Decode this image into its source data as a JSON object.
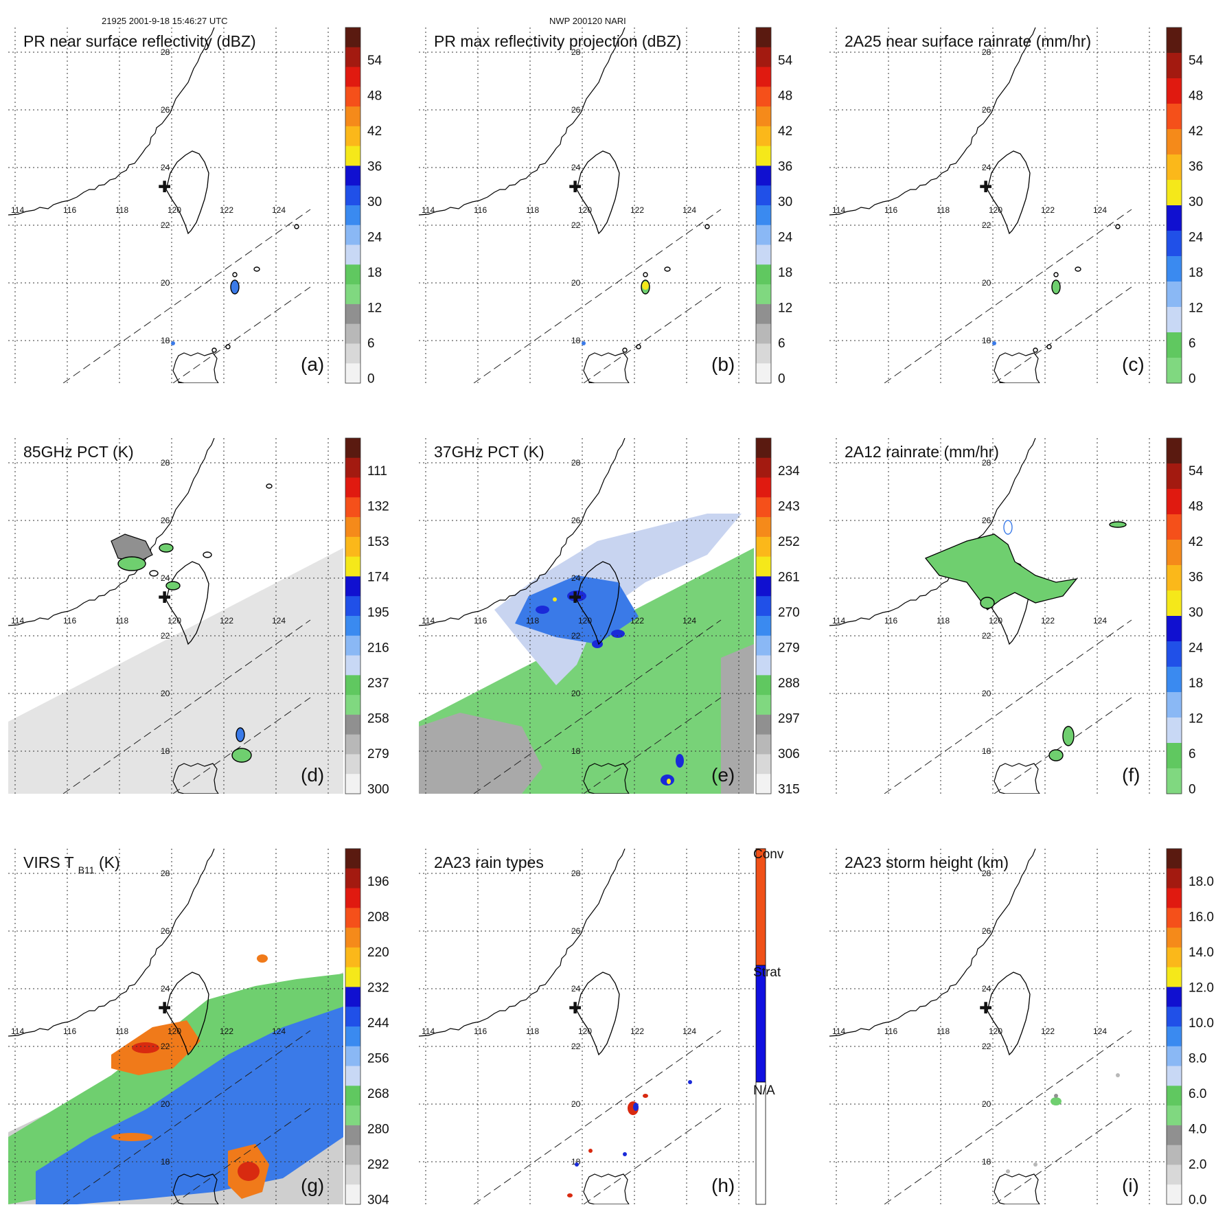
{
  "header": {
    "orbit_time": "21925 2001-9-18 15:46:27 UTC",
    "model": "NWP 200120 NARI"
  },
  "map": {
    "lon_labels": [
      "114",
      "116",
      "118",
      "120",
      "122",
      "124"
    ],
    "lat_labels": [
      "28",
      "26",
      "24",
      "22",
      "20",
      "18"
    ],
    "marker": "✚"
  },
  "panels": [
    {
      "id": "a",
      "title": "PR near surface reflectivity (dBZ)",
      "label": "(a)",
      "bg": "none",
      "cb_ticks": [
        "54",
        "48",
        "42",
        "36",
        "30",
        "24",
        "18",
        "12",
        "6",
        "0"
      ],
      "cb_colors": [
        "#5a1a10",
        "#a31a10",
        "#e01a10",
        "#f5501a",
        "#f58a1a",
        "#fbb81a",
        "#f5e81a",
        "#1010d0",
        "#2050e8",
        "#3a8af0",
        "#8ab8f5",
        "#c8d8f5",
        "#60c860",
        "#80d880",
        "#909090",
        "#b8b8b8",
        "#d8d8d8",
        "#f2f2f2"
      ]
    },
    {
      "id": "b",
      "title": "PR max reflectivity projection (dBZ)",
      "label": "(b)",
      "bg": "none",
      "cb_ticks": [
        "54",
        "48",
        "42",
        "36",
        "30",
        "24",
        "18",
        "12",
        "6",
        "0"
      ],
      "cb_colors": [
        "#5a1a10",
        "#a31a10",
        "#e01a10",
        "#f5501a",
        "#f58a1a",
        "#fbb81a",
        "#f5e81a",
        "#1010d0",
        "#2050e8",
        "#3a8af0",
        "#8ab8f5",
        "#c8d8f5",
        "#60c860",
        "#80d880",
        "#909090",
        "#b8b8b8",
        "#d8d8d8",
        "#f2f2f2"
      ]
    },
    {
      "id": "c",
      "title": "2A25 near surface rainrate (mm/hr)",
      "label": "(c)",
      "bg": "none",
      "cb_ticks": [
        "54",
        "48",
        "42",
        "36",
        "30",
        "24",
        "18",
        "12",
        "6",
        "0"
      ],
      "cb_colors": [
        "#5a1a10",
        "#a31a10",
        "#e01a10",
        "#f5501a",
        "#f58a1a",
        "#fbb81a",
        "#f5e81a",
        "#1010d0",
        "#2050e8",
        "#3a8af0",
        "#8ab8f5",
        "#c8d8f5",
        "#60c860",
        "#80d880"
      ]
    },
    {
      "id": "d",
      "title": "85GHz PCT (K)",
      "label": "(d)",
      "bg": "gray",
      "cb_ticks": [
        "111",
        "132",
        "153",
        "174",
        "195",
        "216",
        "237",
        "258",
        "279",
        "300"
      ],
      "cb_colors": [
        "#5a1a10",
        "#a31a10",
        "#e01a10",
        "#f5501a",
        "#f58a1a",
        "#fbb81a",
        "#f5e81a",
        "#1010d0",
        "#2050e8",
        "#3a8af0",
        "#8ab8f5",
        "#c8d8f5",
        "#60c860",
        "#80d880",
        "#909090",
        "#b8b8b8",
        "#d8d8d8",
        "#f2f2f2"
      ]
    },
    {
      "id": "e",
      "title": "37GHz PCT (K)",
      "label": "(e)",
      "bg": "green",
      "cb_ticks": [
        "234",
        "243",
        "252",
        "261",
        "270",
        "279",
        "288",
        "297",
        "306",
        "315"
      ],
      "cb_colors": [
        "#5a1a10",
        "#a31a10",
        "#e01a10",
        "#f5501a",
        "#f58a1a",
        "#fbb81a",
        "#f5e81a",
        "#1010d0",
        "#2050e8",
        "#3a8af0",
        "#8ab8f5",
        "#c8d8f5",
        "#60c860",
        "#80d880",
        "#909090",
        "#b8b8b8",
        "#d8d8d8",
        "#f2f2f2"
      ]
    },
    {
      "id": "f",
      "title": "2A12 rainrate (mm/hr)",
      "label": "(f)",
      "bg": "none",
      "cb_ticks": [
        "54",
        "48",
        "42",
        "36",
        "30",
        "24",
        "18",
        "12",
        "6",
        "0"
      ],
      "cb_colors": [
        "#5a1a10",
        "#a31a10",
        "#e01a10",
        "#f5501a",
        "#f58a1a",
        "#fbb81a",
        "#f5e81a",
        "#1010d0",
        "#2050e8",
        "#3a8af0",
        "#8ab8f5",
        "#c8d8f5",
        "#60c860",
        "#80d880"
      ]
    },
    {
      "id": "g",
      "title": "VIRS T",
      "title_sub": "B11",
      "title_tail": " (K)",
      "label": "(g)",
      "bg": "virs",
      "cb_ticks": [
        "196",
        "208",
        "220",
        "232",
        "244",
        "256",
        "268",
        "280",
        "292",
        "304"
      ],
      "cb_colors": [
        "#5a1a10",
        "#a31a10",
        "#e01a10",
        "#f5501a",
        "#f58a1a",
        "#fbb81a",
        "#f5e81a",
        "#1010d0",
        "#2050e8",
        "#3a8af0",
        "#8ab8f5",
        "#c8d8f5",
        "#60c860",
        "#80d880",
        "#909090",
        "#b8b8b8",
        "#d8d8d8",
        "#f2f2f2"
      ]
    },
    {
      "id": "h",
      "title": "2A23 rain types",
      "label": "(h)",
      "bg": "none",
      "cb_ticks": [
        "Conv",
        "Strat",
        "N/A"
      ],
      "cb_colors": [
        "#f05018",
        "#1010e0",
        "#ffffff"
      ]
    },
    {
      "id": "i",
      "title": "2A23 storm height (km)",
      "label": "(i)",
      "bg": "none",
      "cb_ticks": [
        "18.0",
        "16.0",
        "14.0",
        "12.0",
        "10.0",
        "8.0",
        "6.0",
        "4.0",
        "2.0",
        "0.0"
      ],
      "cb_colors": [
        "#5a1a10",
        "#a31a10",
        "#e01a10",
        "#f5501a",
        "#f58a1a",
        "#fbb81a",
        "#f5e81a",
        "#1010d0",
        "#2050e8",
        "#3a8af0",
        "#8ab8f5",
        "#c8d8f5",
        "#60c860",
        "#80d880",
        "#909090",
        "#b8b8b8",
        "#d8d8d8",
        "#f2f2f2"
      ]
    }
  ],
  "colors": {
    "coast": "#000000",
    "grid": "#333333",
    "swath_gray": "#e4e4e4",
    "swath_green": "#78d278",
    "rain_green": "#6fcf6f",
    "rain_blue": "#3a7ae8",
    "rain_deep_blue": "#1a2ad8",
    "rain_orange": "#f07a1a",
    "rain_red": "#d82a10",
    "rain_yellow": "#f5e81a"
  }
}
